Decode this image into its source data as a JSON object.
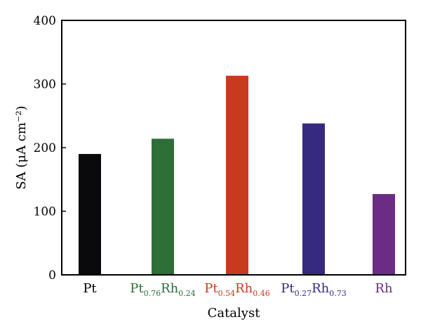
{
  "chart_data": {
    "type": "bar",
    "categories": [
      {
        "label": "Pt",
        "parts": [
          {
            "t": "Pt",
            "sub": false
          }
        ]
      },
      {
        "label": "Pt0.76Rh0.24",
        "parts": [
          {
            "t": "Pt",
            "sub": false
          },
          {
            "t": "0.76",
            "sub": true
          },
          {
            "t": "Rh",
            "sub": false
          },
          {
            "t": "0.24",
            "sub": true
          }
        ]
      },
      {
        "label": "Pt0.54Rh0.46",
        "parts": [
          {
            "t": "Pt",
            "sub": false
          },
          {
            "t": "0.54",
            "sub": true
          },
          {
            "t": "Rh",
            "sub": false
          },
          {
            "t": "0.46",
            "sub": true
          }
        ]
      },
      {
        "label": "Pt0.27Rh0.73",
        "parts": [
          {
            "t": "Pt",
            "sub": false
          },
          {
            "t": "0.27",
            "sub": true
          },
          {
            "t": "Rh",
            "sub": false
          },
          {
            "t": "0.73",
            "sub": true
          }
        ]
      },
      {
        "label": "Rh",
        "parts": [
          {
            "t": "Rh",
            "sub": false
          }
        ]
      }
    ],
    "values": [
      190,
      214,
      313,
      238,
      127
    ],
    "colors": [
      "#0a0a0c",
      "#2e6e37",
      "#c83a1e",
      "#362a80",
      "#6b2c86"
    ],
    "xlabel": "Catalyst",
    "ylabel": "SA (μA cm⁻²)",
    "ylim": [
      0,
      400
    ],
    "yticks": [
      0,
      100,
      200,
      300,
      400
    ],
    "grid": false
  }
}
